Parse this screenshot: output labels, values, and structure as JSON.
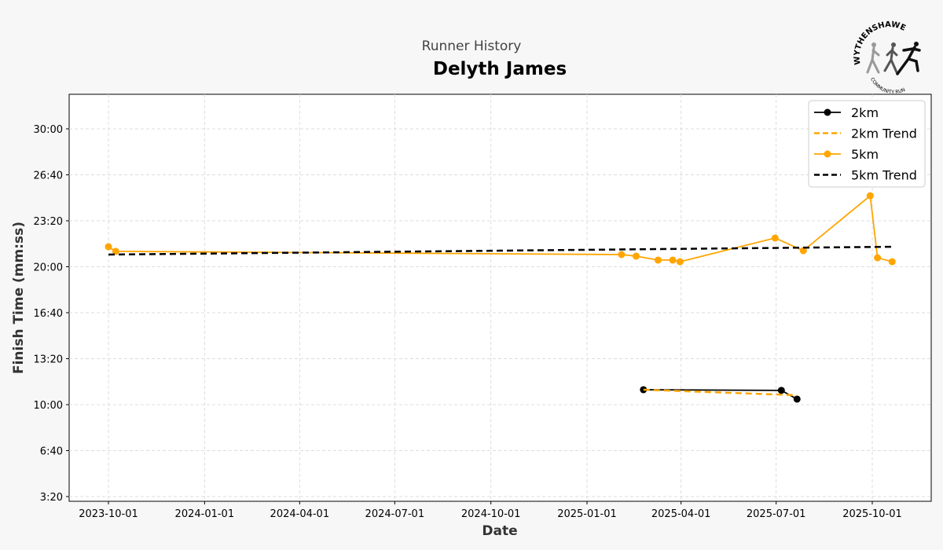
{
  "header": {
    "subtitle": "Runner History",
    "title": "Delyth James"
  },
  "logo": {
    "text_top": "WYTHENSHAWE",
    "text_bottom": "COMMUNITY RUN"
  },
  "colors": {
    "orange": "#ffa500",
    "black": "#000000"
  },
  "chart_data": {
    "type": "line",
    "xlabel": "Date",
    "ylabel": "Finish Time (mm:ss)",
    "xlim": [
      "2023-09-04",
      "2025-11-16"
    ],
    "ylim": [
      "2:40",
      "32:40"
    ],
    "grid": true,
    "legend_position": "top-right",
    "x_ticks": [
      "2023-10-01",
      "2024-01-01",
      "2024-04-01",
      "2024-07-01",
      "2024-10-01",
      "2025-01-01",
      "2025-04-01",
      "2025-07-01",
      "2025-10-01"
    ],
    "y_ticks": [
      "3:20",
      "6:40",
      "10:00",
      "13:20",
      "16:40",
      "20:00",
      "23:20",
      "26:40",
      "30:00"
    ],
    "series": [
      {
        "name": "2km",
        "color": "#000000",
        "style": "solid-marker",
        "x": [
          "2025-02-24",
          "2025-07-06",
          "2025-07-21"
        ],
        "y": [
          "11:05",
          "11:02",
          "10:24"
        ]
      },
      {
        "name": "2km Trend",
        "color": "#ffa500",
        "style": "dashed",
        "x": [
          "2025-02-24",
          "2025-07-21"
        ],
        "y": [
          "11:05",
          "10:41"
        ]
      },
      {
        "name": "5km",
        "color": "#ffa500",
        "style": "solid-marker",
        "x": [
          "2023-10-01",
          "2023-10-08",
          "2025-02-03",
          "2025-02-17",
          "2025-03-10",
          "2025-03-24",
          "2025-03-31",
          "2025-06-30",
          "2025-07-27",
          "2025-09-29",
          "2025-10-06",
          "2025-10-20"
        ],
        "y": [
          "21:27",
          "21:07",
          "20:53",
          "20:46",
          "20:29",
          "20:29",
          "20:22",
          "22:05",
          "21:10",
          "25:09",
          "20:39",
          "20:22"
        ]
      },
      {
        "name": "5km Trend",
        "color": "#000000",
        "style": "dashed",
        "x": [
          "2023-10-01",
          "2025-10-20"
        ],
        "y": [
          "20:53",
          "21:27"
        ]
      }
    ]
  }
}
